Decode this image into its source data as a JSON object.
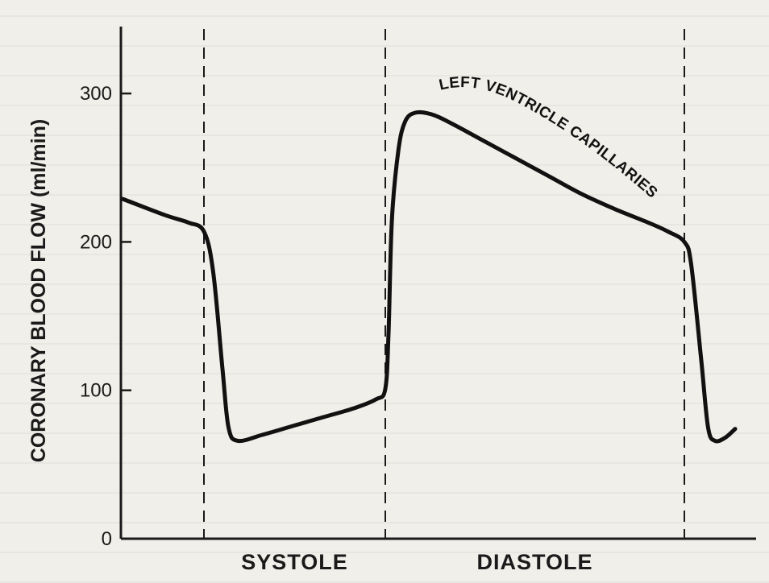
{
  "chart_data": {
    "type": "line",
    "title": "",
    "xlabel": "",
    "ylabel": "CORONARY BLOOD FLOW (ml/min)",
    "ylim": [
      0,
      340
    ],
    "yticks": [
      "0",
      "100",
      "200",
      "300"
    ],
    "ytick_values": [
      0,
      100,
      200,
      300
    ],
    "grid": false,
    "phases": [
      {
        "label": "SYSTOLE"
      },
      {
        "label": "DIASTOLE"
      }
    ],
    "annotation": "LEFT VENTRICLE CAPILLARIES",
    "series": [
      {
        "values": [
          [
            0.0,
            229
          ],
          [
            0.11,
            218
          ],
          [
            0.17,
            213
          ],
          [
            0.21,
            207
          ],
          [
            0.24,
            180
          ],
          [
            0.27,
            115
          ],
          [
            0.29,
            75
          ],
          [
            0.32,
            66
          ],
          [
            0.4,
            70
          ],
          [
            0.5,
            76
          ],
          [
            0.6,
            82
          ],
          [
            0.7,
            88
          ],
          [
            0.77,
            94
          ],
          [
            0.8,
            101
          ],
          [
            0.81,
            140
          ],
          [
            0.82,
            215
          ],
          [
            0.84,
            262
          ],
          [
            0.86,
            281
          ],
          [
            0.89,
            287
          ],
          [
            0.94,
            286
          ],
          [
            1.0,
            280
          ],
          [
            1.1,
            268
          ],
          [
            1.2,
            256
          ],
          [
            1.3,
            244
          ],
          [
            1.4,
            232
          ],
          [
            1.5,
            222
          ],
          [
            1.6,
            213
          ],
          [
            1.66,
            207
          ],
          [
            1.71,
            200
          ],
          [
            1.73,
            185
          ],
          [
            1.76,
            120
          ],
          [
            1.78,
            75
          ],
          [
            1.8,
            66
          ],
          [
            1.83,
            68
          ],
          [
            1.86,
            74
          ]
        ]
      }
    ]
  }
}
